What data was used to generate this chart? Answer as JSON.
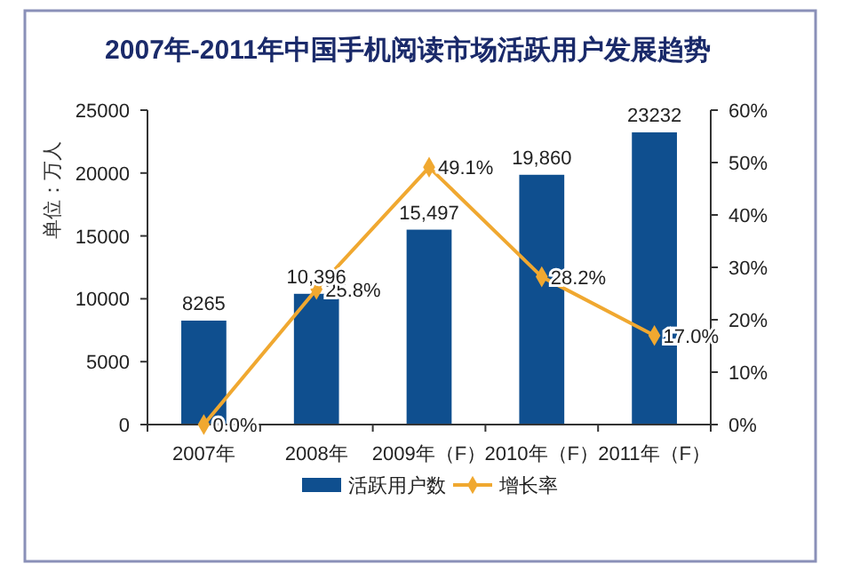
{
  "chart_data": {
    "type": "bar",
    "title": "2007年-2011年中国手机阅读市场活跃用户发展趋势",
    "ylabel": "单位：万人",
    "categories": [
      "2007年",
      "2008年",
      "2009年（F）",
      "2010年（F）",
      "2011年（F）"
    ],
    "series": [
      {
        "name": "活跃用户数",
        "color": "#0f4f8f",
        "values": [
          8265,
          10396,
          15497,
          19860,
          23232
        ],
        "value_labels": [
          "8265",
          "10,396",
          "15,497",
          "19,860",
          "23232"
        ]
      },
      {
        "name": "增长率",
        "type": "line",
        "axis": "y2",
        "color": "#f0a830",
        "marker": "diamond",
        "values": [
          0,
          25.8,
          49.1,
          28.2,
          17.0
        ],
        "value_labels": [
          "0.0%",
          "25.8%",
          "49.1%",
          "28.2%",
          "17.0%"
        ]
      }
    ],
    "ylim": [
      0,
      25000
    ],
    "yticks": [
      0,
      5000,
      10000,
      15000,
      20000,
      25000
    ],
    "y2lim": [
      0,
      60
    ],
    "y2ticks": [
      {
        "value": 0,
        "label": "0%"
      },
      {
        "value": 10,
        "label": "10%"
      },
      {
        "value": 20,
        "label": "20%"
      },
      {
        "value": 30,
        "label": "30%"
      },
      {
        "value": 40,
        "label": "40%"
      },
      {
        "value": 50,
        "label": "50%"
      },
      {
        "value": 60,
        "label": "60%"
      }
    ],
    "legend": "bottom",
    "grid": false
  }
}
